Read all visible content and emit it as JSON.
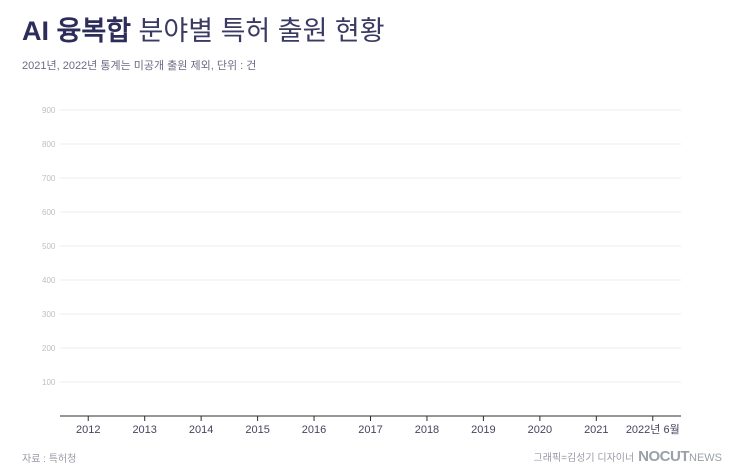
{
  "header": {
    "title_bold": "AI 융복합",
    "title_rest": "분야별 특허 출원 현황",
    "subtitle": "2021년, 2022년 통계는 미공개 출원 제외, 단위 : 건"
  },
  "footer": {
    "source": "자료 : 특허청",
    "credit": "그래픽=김성기 디자이너",
    "logo": "NOCUT",
    "logo_suffix": "NEWS"
  },
  "colors": {
    "grid": "#ececf1",
    "axis": "#2d2d2d",
    "text": "#2d2d5a"
  },
  "chart_data": {
    "type": "bar",
    "categories": [
      "2012",
      "2013",
      "2014",
      "2015",
      "2016",
      "2017",
      "2018",
      "2019",
      "2020",
      "2021",
      "2022년 6월"
    ],
    "series": [],
    "ylim": [
      0,
      900
    ],
    "yticks": [
      100,
      200,
      300,
      400,
      500,
      600,
      700,
      800,
      900
    ],
    "grid": true
  }
}
